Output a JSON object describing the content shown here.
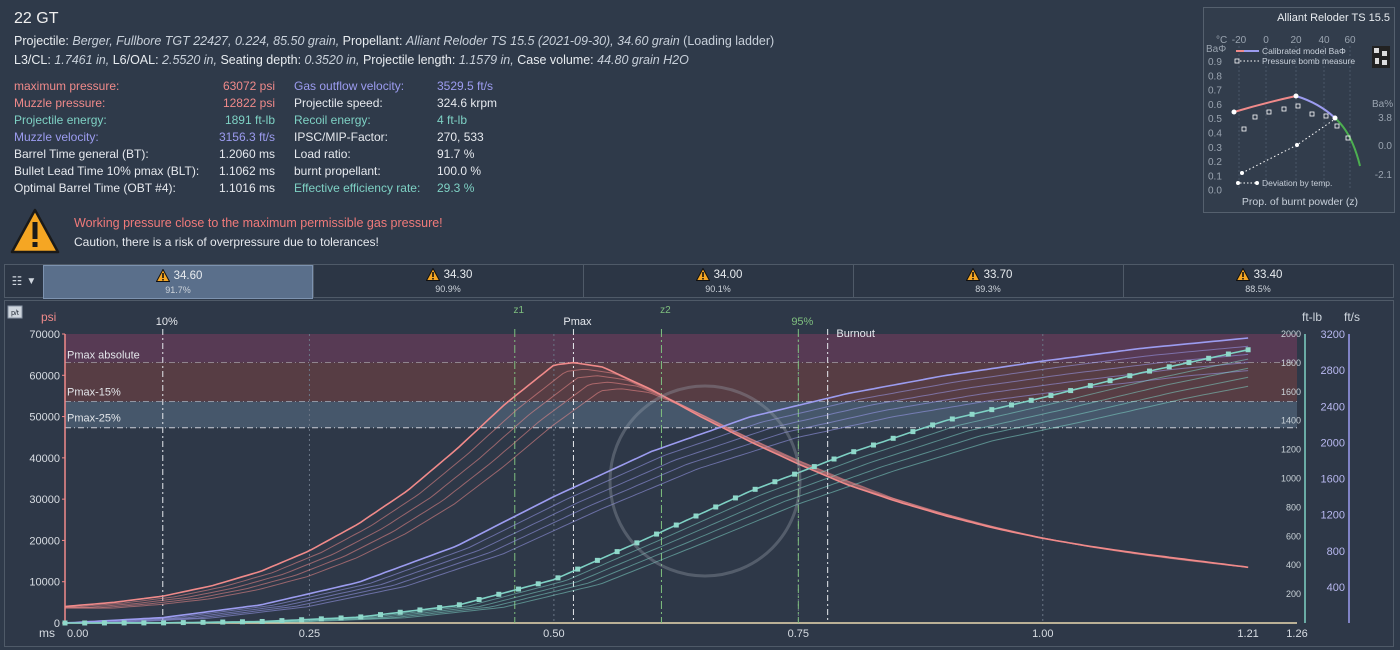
{
  "header": {
    "title": "22 GT",
    "line1": {
      "projectile_label": "Projectile: ",
      "projectile_value": "Berger, Fullbore TGT 22427, 0.224, 85.50 grain,",
      "propellant_label": " Propellant: ",
      "propellant_value": "Alliant Reloder TS 15.5 (2021-09-30), 34.60 grain",
      "ladder": " (Loading ladder)"
    },
    "line2": {
      "l3_label": "L3/CL: ",
      "l3_value": "1.7461 in,",
      "l6_label": " L6/OAL: ",
      "l6_value": "2.5520 in,",
      "seat_label": " Seating depth: ",
      "seat_value": "0.3520 in,",
      "plen_label": " Projectile length: ",
      "plen_value": "1.1579 in,",
      "case_label": " Case volume: ",
      "case_value": "44.80 grain H2O"
    }
  },
  "stats_left": [
    {
      "label": "maximum pressure:",
      "value": "63072 psi",
      "color": "red"
    },
    {
      "label": "Muzzle pressure:",
      "value": "12822 psi",
      "color": "red"
    },
    {
      "label": "Projectile energy:",
      "value": "1891 ft-lb",
      "color": "teal"
    },
    {
      "label": "Muzzle velocity:",
      "value": "3156.3 ft/s",
      "color": "purple"
    },
    {
      "label": "Barrel Time general (BT):",
      "value": "1.2060 ms",
      "color": "white"
    },
    {
      "label": "Bullet Lead Time 10% pmax (BLT):",
      "value": "1.1062 ms",
      "color": "white"
    },
    {
      "label": "Optimal Barrel Time (OBT #4):",
      "value": "1.1016 ms",
      "color": "white"
    }
  ],
  "stats_right": [
    {
      "label": "Gas outflow velocity:",
      "value": "3529.5 ft/s",
      "color": "purple"
    },
    {
      "label": "Projectile speed:",
      "value": "324.6 krpm",
      "color": "white"
    },
    {
      "label": "Recoil energy:",
      "value": "4 ft-lb",
      "color": "teal"
    },
    {
      "label": "IPSC/MIP-Factor:",
      "value": "270, 533",
      "color": "white"
    },
    {
      "label": "Load ratio:",
      "value": "91.7 %",
      "color": "white"
    },
    {
      "label": "burnt propellant:",
      "value": "100.0 %",
      "color": "white"
    },
    {
      "label": "Effective efficiency rate:",
      "value": "29.3 %",
      "color": "teal"
    }
  ],
  "warning": {
    "line1": "Working pressure close to the maximum permissible gas pressure!",
    "line2": "Caution, there is a risk of overpressure due to tolerances!"
  },
  "inset": {
    "title": "Alliant Reloder TS 15.5",
    "top_unit": "°C",
    "top_ticks": [
      "-20",
      "0",
      "20",
      "40",
      "60"
    ],
    "left_label": "BaΦ",
    "left_ticks": [
      "0.9",
      "0.8",
      "0.7",
      "0.6",
      "0.5",
      "0.4",
      "0.3",
      "0.2",
      "0.1",
      "0.0"
    ],
    "right_label": "Ba%",
    "right_ticks": [
      "3.8",
      "0.0",
      "-2.1"
    ],
    "legend1": "Calibrated model BaΦ",
    "legend2": "Pressure bomb measure",
    "legend3": "Deviation by temp.",
    "xlabel": "Prop. of burnt powder (z)"
  },
  "tabs": [
    {
      "value": "34.60",
      "pct": "91.7%",
      "active": true
    },
    {
      "value": "34.30",
      "pct": "90.9%",
      "active": false
    },
    {
      "value": "34.00",
      "pct": "90.1%",
      "active": false
    },
    {
      "value": "33.70",
      "pct": "89.3%",
      "active": false
    },
    {
      "value": "33.40",
      "pct": "88.5%",
      "active": false
    }
  ],
  "chart_data": {
    "type": "line",
    "toggle_label": "p/t",
    "units": {
      "left": "psi",
      "x": "ms",
      "right_energy": "ft-lb",
      "right_velocity": "ft/s"
    },
    "xlim": [
      0,
      1.26
    ],
    "x_ticks": [
      "0.00",
      "0.25",
      "0.50",
      "0.75",
      "1.00",
      "1.21",
      "1.26"
    ],
    "ylim_pressure": [
      0,
      70000
    ],
    "y_ticks_pressure": [
      "0",
      "10000",
      "20000",
      "30000",
      "40000",
      "50000",
      "60000",
      "70000"
    ],
    "y_ticks_energy": [
      "200",
      "400",
      "600",
      "800",
      "1000",
      "1200",
      "1400",
      "1600",
      "1800",
      "2000"
    ],
    "y_ticks_velocity": [
      "400",
      "800",
      "1200",
      "1600",
      "2000",
      "2400",
      "2800",
      "3200"
    ],
    "bands": [
      {
        "label": "Pmax absolute",
        "from": 63072,
        "to": 70000
      },
      {
        "label": "Pmax-15%",
        "from": 53611,
        "to": 63072
      },
      {
        "label": "Pmax-25%",
        "from": 47304,
        "to": 53611
      }
    ],
    "markers": [
      {
        "label": "10%",
        "x": 0.1
      },
      {
        "label": "z1",
        "x": 0.46
      },
      {
        "label": "Pmax",
        "x": 0.52
      },
      {
        "label": "z2",
        "x": 0.61
      },
      {
        "label": "95%",
        "x": 0.75
      },
      {
        "label": "Burnout",
        "x": 0.78
      }
    ],
    "series": [
      {
        "name": "Pressure",
        "color": "#f08a8a",
        "x": [
          0,
          0.05,
          0.1,
          0.15,
          0.2,
          0.25,
          0.3,
          0.35,
          0.4,
          0.45,
          0.5,
          0.52,
          0.55,
          0.6,
          0.65,
          0.7,
          0.75,
          0.8,
          0.85,
          0.9,
          0.95,
          1.0,
          1.05,
          1.1,
          1.15,
          1.21,
          1.26
        ],
        "values": [
          4000,
          5000,
          6500,
          9000,
          12500,
          17500,
          24000,
          32000,
          42000,
          53000,
          62500,
          63072,
          62000,
          56500,
          50000,
          44000,
          38500,
          33500,
          29500,
          26000,
          23000,
          20500,
          18500,
          16800,
          15300,
          13500,
          12822
        ]
      },
      {
        "name": "Velocity",
        "color": "#9c9cf0",
        "x": [
          0,
          0.1,
          0.2,
          0.3,
          0.4,
          0.5,
          0.6,
          0.7,
          0.8,
          0.9,
          1.0,
          1.1,
          1.21
        ],
        "values": [
          0,
          60,
          200,
          450,
          850,
          1400,
          1900,
          2280,
          2540,
          2740,
          2900,
          3040,
          3156
        ]
      },
      {
        "name": "Energy",
        "color": "#7ed1c4",
        "x": [
          0,
          0.1,
          0.2,
          0.3,
          0.4,
          0.5,
          0.6,
          0.7,
          0.8,
          0.9,
          1.0,
          1.1,
          1.21
        ],
        "values": [
          0,
          1,
          10,
          40,
          120,
          300,
          600,
          910,
          1170,
          1400,
          1560,
          1730,
          1891
        ]
      }
    ]
  }
}
